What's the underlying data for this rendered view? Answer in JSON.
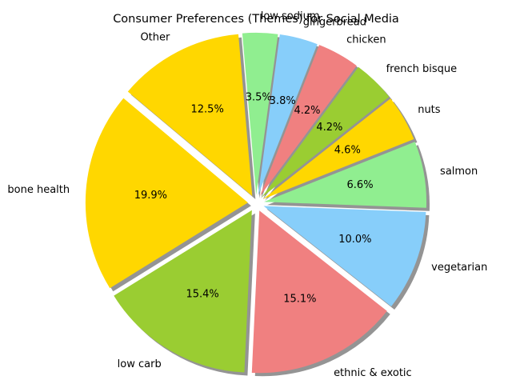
{
  "chart_data": {
    "type": "pie",
    "title": "Consumer Preferences (Themes) for Social Media",
    "start_angle_deg": 140,
    "direction": "counterclockwise",
    "shadow": true,
    "slices": [
      {
        "label": "bone health",
        "value": 19.9,
        "pct_label": "19.9%",
        "color": "#ffd700"
      },
      {
        "label": "low carb",
        "value": 15.4,
        "pct_label": "15.4%",
        "color": "#9acd32"
      },
      {
        "label": "ethnic & exotic",
        "value": 15.1,
        "pct_label": "15.1%",
        "color": "#f08080"
      },
      {
        "label": "vegetarian",
        "value": 10.0,
        "pct_label": "10.0%",
        "color": "#87cefa"
      },
      {
        "label": "salmon",
        "value": 6.6,
        "pct_label": "6.6%",
        "color": "#90ee90"
      },
      {
        "label": "nuts",
        "value": 4.6,
        "pct_label": "4.6%",
        "color": "#ffd700"
      },
      {
        "label": "french bisque",
        "value": 4.2,
        "pct_label": "4.2%",
        "color": "#9acd32"
      },
      {
        "label": "chicken",
        "value": 4.2,
        "pct_label": "4.2%",
        "color": "#f08080"
      },
      {
        "label": "gingerbread",
        "value": 3.8,
        "pct_label": "3.8%",
        "color": "#87cefa"
      },
      {
        "label": "low sodium",
        "value": 3.5,
        "pct_label": "3.5%",
        "color": "#90ee90"
      },
      {
        "label": "Other",
        "value": 12.5,
        "pct_label": "12.5%",
        "color": "#ffd700"
      }
    ]
  }
}
